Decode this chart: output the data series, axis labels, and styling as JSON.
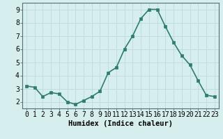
{
  "x": [
    0,
    1,
    2,
    3,
    4,
    5,
    6,
    7,
    8,
    9,
    10,
    11,
    12,
    13,
    14,
    15,
    16,
    17,
    18,
    19,
    20,
    21,
    22,
    23
  ],
  "y": [
    3.2,
    3.1,
    2.4,
    2.7,
    2.6,
    2.0,
    1.8,
    2.1,
    2.4,
    2.8,
    4.2,
    4.6,
    6.0,
    7.0,
    8.3,
    9.0,
    9.0,
    7.7,
    6.5,
    5.5,
    4.8,
    3.6,
    2.5,
    2.4
  ],
  "xlabel": "Humidex (Indice chaleur)",
  "line_color": "#2e7d6e",
  "marker_color": "#2e7d6e",
  "bg_color": "#d6eeee",
  "grid_color": "#c0dcdc",
  "ylim": [
    1.5,
    9.5
  ],
  "xlim": [
    -0.5,
    23.5
  ],
  "yticks": [
    2,
    3,
    4,
    5,
    6,
    7,
    8,
    9
  ],
  "xtick_labels": [
    "0",
    "1",
    "2",
    "3",
    "4",
    "5",
    "6",
    "7",
    "8",
    "9",
    "10",
    "11",
    "12",
    "13",
    "14",
    "15",
    "16",
    "17",
    "18",
    "19",
    "20",
    "21",
    "22",
    "23"
  ],
  "xlabel_fontsize": 7.5,
  "tick_fontsize": 7,
  "line_width": 1.2,
  "marker_size": 2.5
}
